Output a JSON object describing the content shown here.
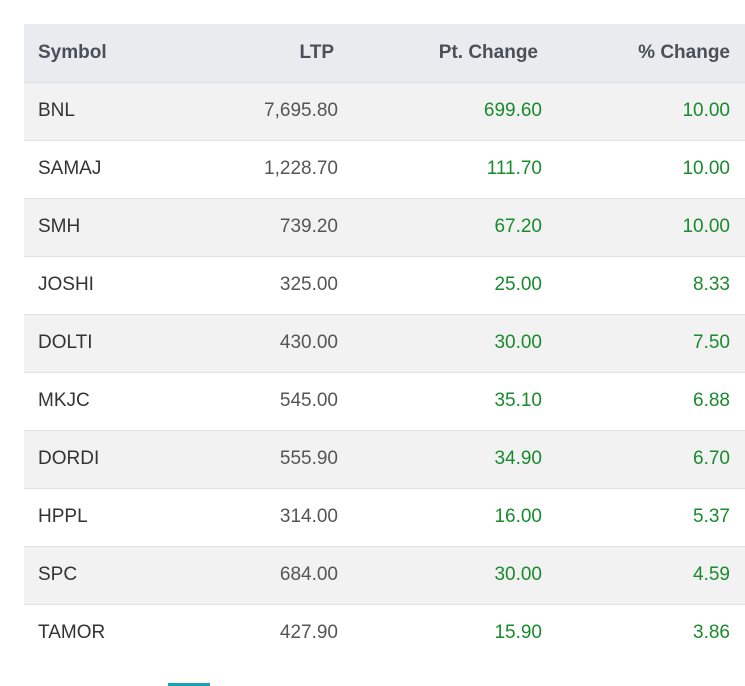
{
  "table": {
    "headers": {
      "symbol": "Symbol",
      "ltp": "LTP",
      "pt_change": "Pt. Change",
      "pct_change": "% Change"
    },
    "rows": [
      {
        "symbol": "BNL",
        "ltp": "7,695.80",
        "pt_change": "699.60",
        "pct_change": "10.00"
      },
      {
        "symbol": "SAMAJ",
        "ltp": "1,228.70",
        "pt_change": "111.70",
        "pct_change": "10.00"
      },
      {
        "symbol": "SMH",
        "ltp": "739.20",
        "pt_change": "67.20",
        "pct_change": "10.00"
      },
      {
        "symbol": "JOSHI",
        "ltp": "325.00",
        "pt_change": "25.00",
        "pct_change": "8.33"
      },
      {
        "symbol": "DOLTI",
        "ltp": "430.00",
        "pt_change": "30.00",
        "pct_change": "7.50"
      },
      {
        "symbol": "MKJC",
        "ltp": "545.00",
        "pt_change": "35.10",
        "pct_change": "6.88"
      },
      {
        "symbol": "DORDI",
        "ltp": "555.90",
        "pt_change": "34.90",
        "pct_change": "6.70"
      },
      {
        "symbol": "HPPL",
        "ltp": "314.00",
        "pt_change": "16.00",
        "pct_change": "5.37"
      },
      {
        "symbol": "SPC",
        "ltp": "684.00",
        "pt_change": "30.00",
        "pct_change": "4.59"
      },
      {
        "symbol": "TAMOR",
        "ltp": "427.90",
        "pt_change": "15.90",
        "pct_change": "3.86"
      }
    ]
  },
  "colors": {
    "positive_change": "#1a8a2e",
    "header_bg": "#e9ecef",
    "stripe_bg": "#f2f2f2",
    "accent_tab": "#17a2b8"
  }
}
